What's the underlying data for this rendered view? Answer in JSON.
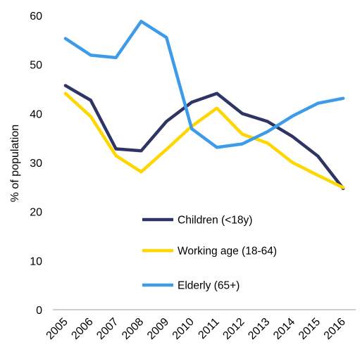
{
  "chart_data": {
    "type": "line",
    "title": "",
    "xlabel": "",
    "ylabel": "% of population",
    "ylim": [
      0,
      60
    ],
    "yticks": [
      0,
      10,
      20,
      30,
      40,
      50,
      60
    ],
    "grid": false,
    "legend_position": "inside-bottom-center",
    "x": [
      "2005",
      "2006",
      "2007",
      "2008",
      "2009",
      "2010",
      "2011",
      "2012",
      "2013",
      "2014",
      "2015",
      "2016"
    ],
    "series": [
      {
        "name": "Children (<18y)",
        "color": "#2e3564",
        "values": [
          45.7,
          42.7,
          32.8,
          32.4,
          38.4,
          42.3,
          44.1,
          40.0,
          38.4,
          35.3,
          31.3,
          24.7
        ]
      },
      {
        "name": "Working age (18-64)",
        "color": "#ffd700",
        "values": [
          44.1,
          39.4,
          31.4,
          28.1,
          32.7,
          37.4,
          41.1,
          35.8,
          34.0,
          30.0,
          27.4,
          24.9
        ]
      },
      {
        "name": "Elderly (65+)",
        "color": "#3d9be9",
        "values": [
          55.3,
          51.9,
          51.4,
          58.8,
          55.5,
          36.9,
          33.1,
          33.8,
          36.3,
          39.5,
          42.1,
          43.1
        ]
      }
    ]
  }
}
